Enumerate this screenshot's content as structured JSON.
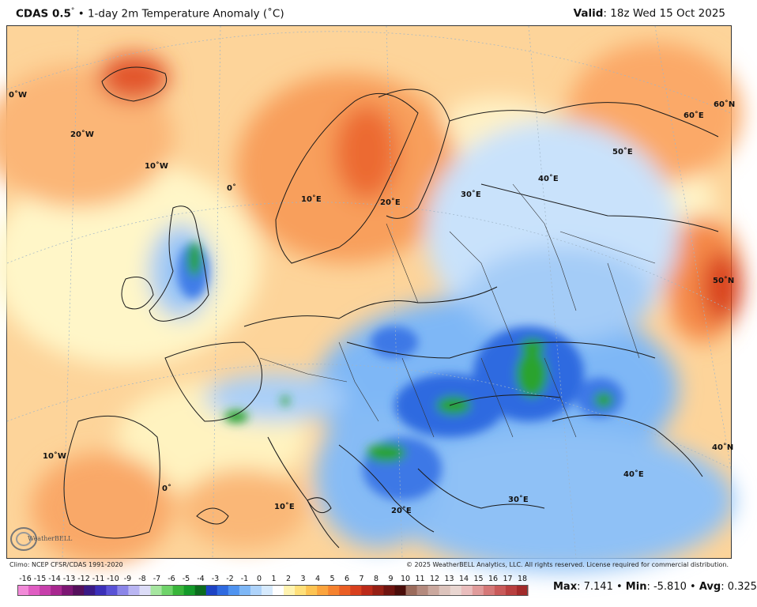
{
  "header": {
    "model": "CDAS 0.5",
    "degree": "°",
    "title_rest": "• 1-day 2m Temperature Anomaly (˚C)",
    "valid_label": "Valid",
    "valid_value": ": 18z Wed 15 Oct 2025"
  },
  "map": {
    "lat_lon_labels": [
      "0˚W",
      "20˚W",
      "10˚W",
      "0˚",
      "10˚E",
      "20˚E",
      "30˚E",
      "40˚E",
      "50˚E",
      "60˚E",
      "60˚N",
      "50˚N",
      "40˚N",
      "10˚W",
      "0˚",
      "10˚E",
      "20˚E",
      "30˚E",
      "40˚E"
    ],
    "logo_text": "WeatherBELL"
  },
  "footer": {
    "climo": "Climo: NCEP CFSR/CDAS 1991-2020",
    "copyright": "© 2025 WeatherBELL Analytics, LLC. All rights reserved. License required for commercial distribution."
  },
  "colorbar": {
    "ticks": [
      "-16",
      "-15",
      "-14",
      "-13",
      "-12",
      "-11",
      "-10",
      "-9",
      "-8",
      "-7",
      "-6",
      "-5",
      "-4",
      "-3",
      "-2",
      "-1",
      "0",
      "1",
      "2",
      "3",
      "4",
      "5",
      "6",
      "7",
      "8",
      "9",
      "10",
      "11",
      "12",
      "13",
      "14",
      "15",
      "16",
      "17",
      "18"
    ],
    "colors": [
      "#f28ad8",
      "#e05dc2",
      "#c73fab",
      "#a8278f",
      "#7c1673",
      "#55105c",
      "#3a1a86",
      "#3b2fb8",
      "#5a52d6",
      "#8b85e8",
      "#b9b5f2",
      "#dcdcf7",
      "#a6e6a0",
      "#6fd36a",
      "#39b53a",
      "#149a2a",
      "#0c6c1e",
      "#1d43c4",
      "#2f6ae0",
      "#4f93f0",
      "#7eb7f6",
      "#aed3fa",
      "#d6eafd",
      "#ffffff",
      "#fff3b0",
      "#ffe07a",
      "#fdc453",
      "#fba43d",
      "#f5822f",
      "#ea5e24",
      "#d8401e",
      "#bb2a19",
      "#962015",
      "#6f1410",
      "#4a0d0a",
      "#9b6b5c",
      "#b48a7e",
      "#caa89e",
      "#dcc3bc",
      "#e9d6d1",
      "#e9bdbd",
      "#e09b9b",
      "#d57878",
      "#c95a5a",
      "#b83f3f",
      "#a22a2a"
    ]
  },
  "stats": {
    "max_label": "Max",
    "max_value": ": 7.141",
    "min_label": "Min",
    "min_value": ": -5.810",
    "avg_label": "Avg",
    "avg_value": ": 0.325"
  }
}
